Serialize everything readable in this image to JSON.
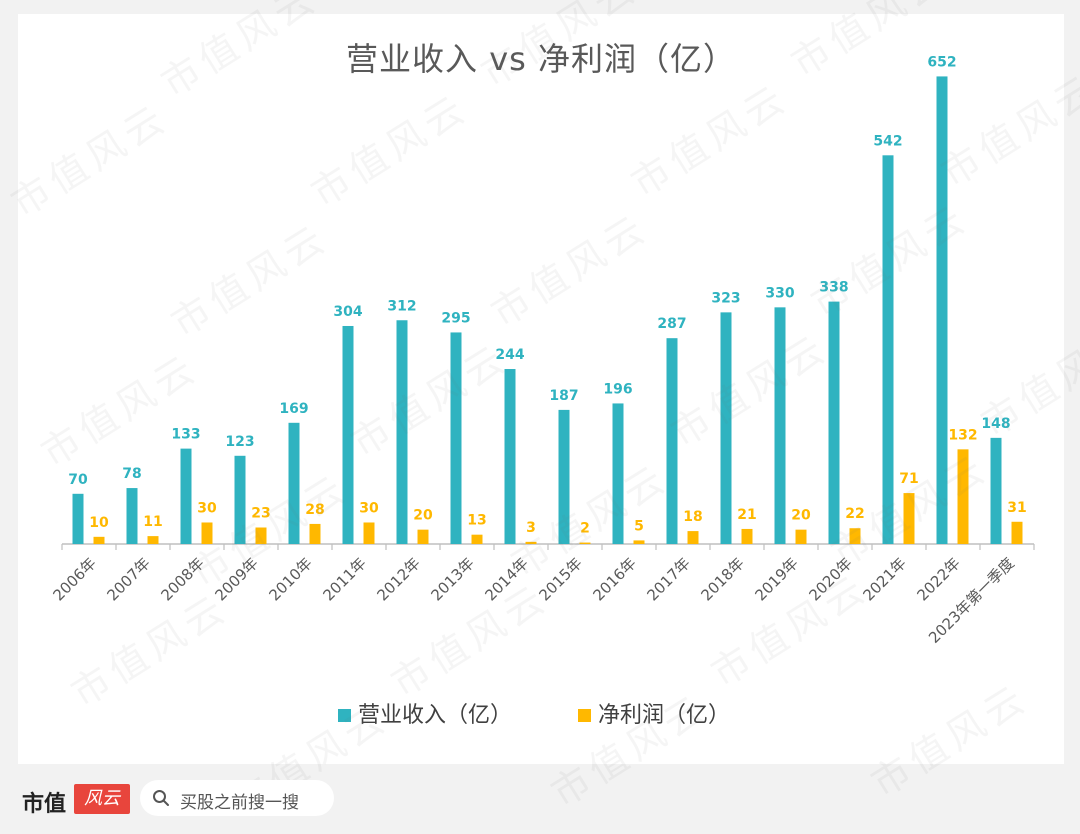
{
  "chart_data": {
    "type": "bar",
    "title": "营业收入 vs 净利润（亿）",
    "categories": [
      "2006年",
      "2007年",
      "2008年",
      "2009年",
      "2010年",
      "2011年",
      "2012年",
      "2013年",
      "2014年",
      "2015年",
      "2016年",
      "2017年",
      "2018年",
      "2019年",
      "2020年",
      "2021年",
      "2022年",
      "2023年第一季度"
    ],
    "series": [
      {
        "name": "营业收入（亿）",
        "color": "#2fb3c0",
        "values": [
          70,
          78,
          133,
          123,
          169,
          304,
          312,
          295,
          244,
          187,
          196,
          287,
          323,
          330,
          338,
          542,
          652,
          148
        ]
      },
      {
        "name": "净利润（亿）",
        "color": "#ffb800",
        "values": [
          10,
          11,
          30,
          23,
          28,
          30,
          20,
          13,
          3,
          2,
          5,
          18,
          21,
          20,
          22,
          71,
          132,
          31
        ]
      }
    ],
    "ylim": [
      0,
      700
    ],
    "xlabel": "",
    "ylabel": "",
    "grid": false,
    "legend_position": "bottom-center"
  },
  "watermark": "市值风云",
  "footer": {
    "brand": "市值",
    "brand_mark": "风云",
    "search_placeholder": "买股之前搜一搜"
  }
}
